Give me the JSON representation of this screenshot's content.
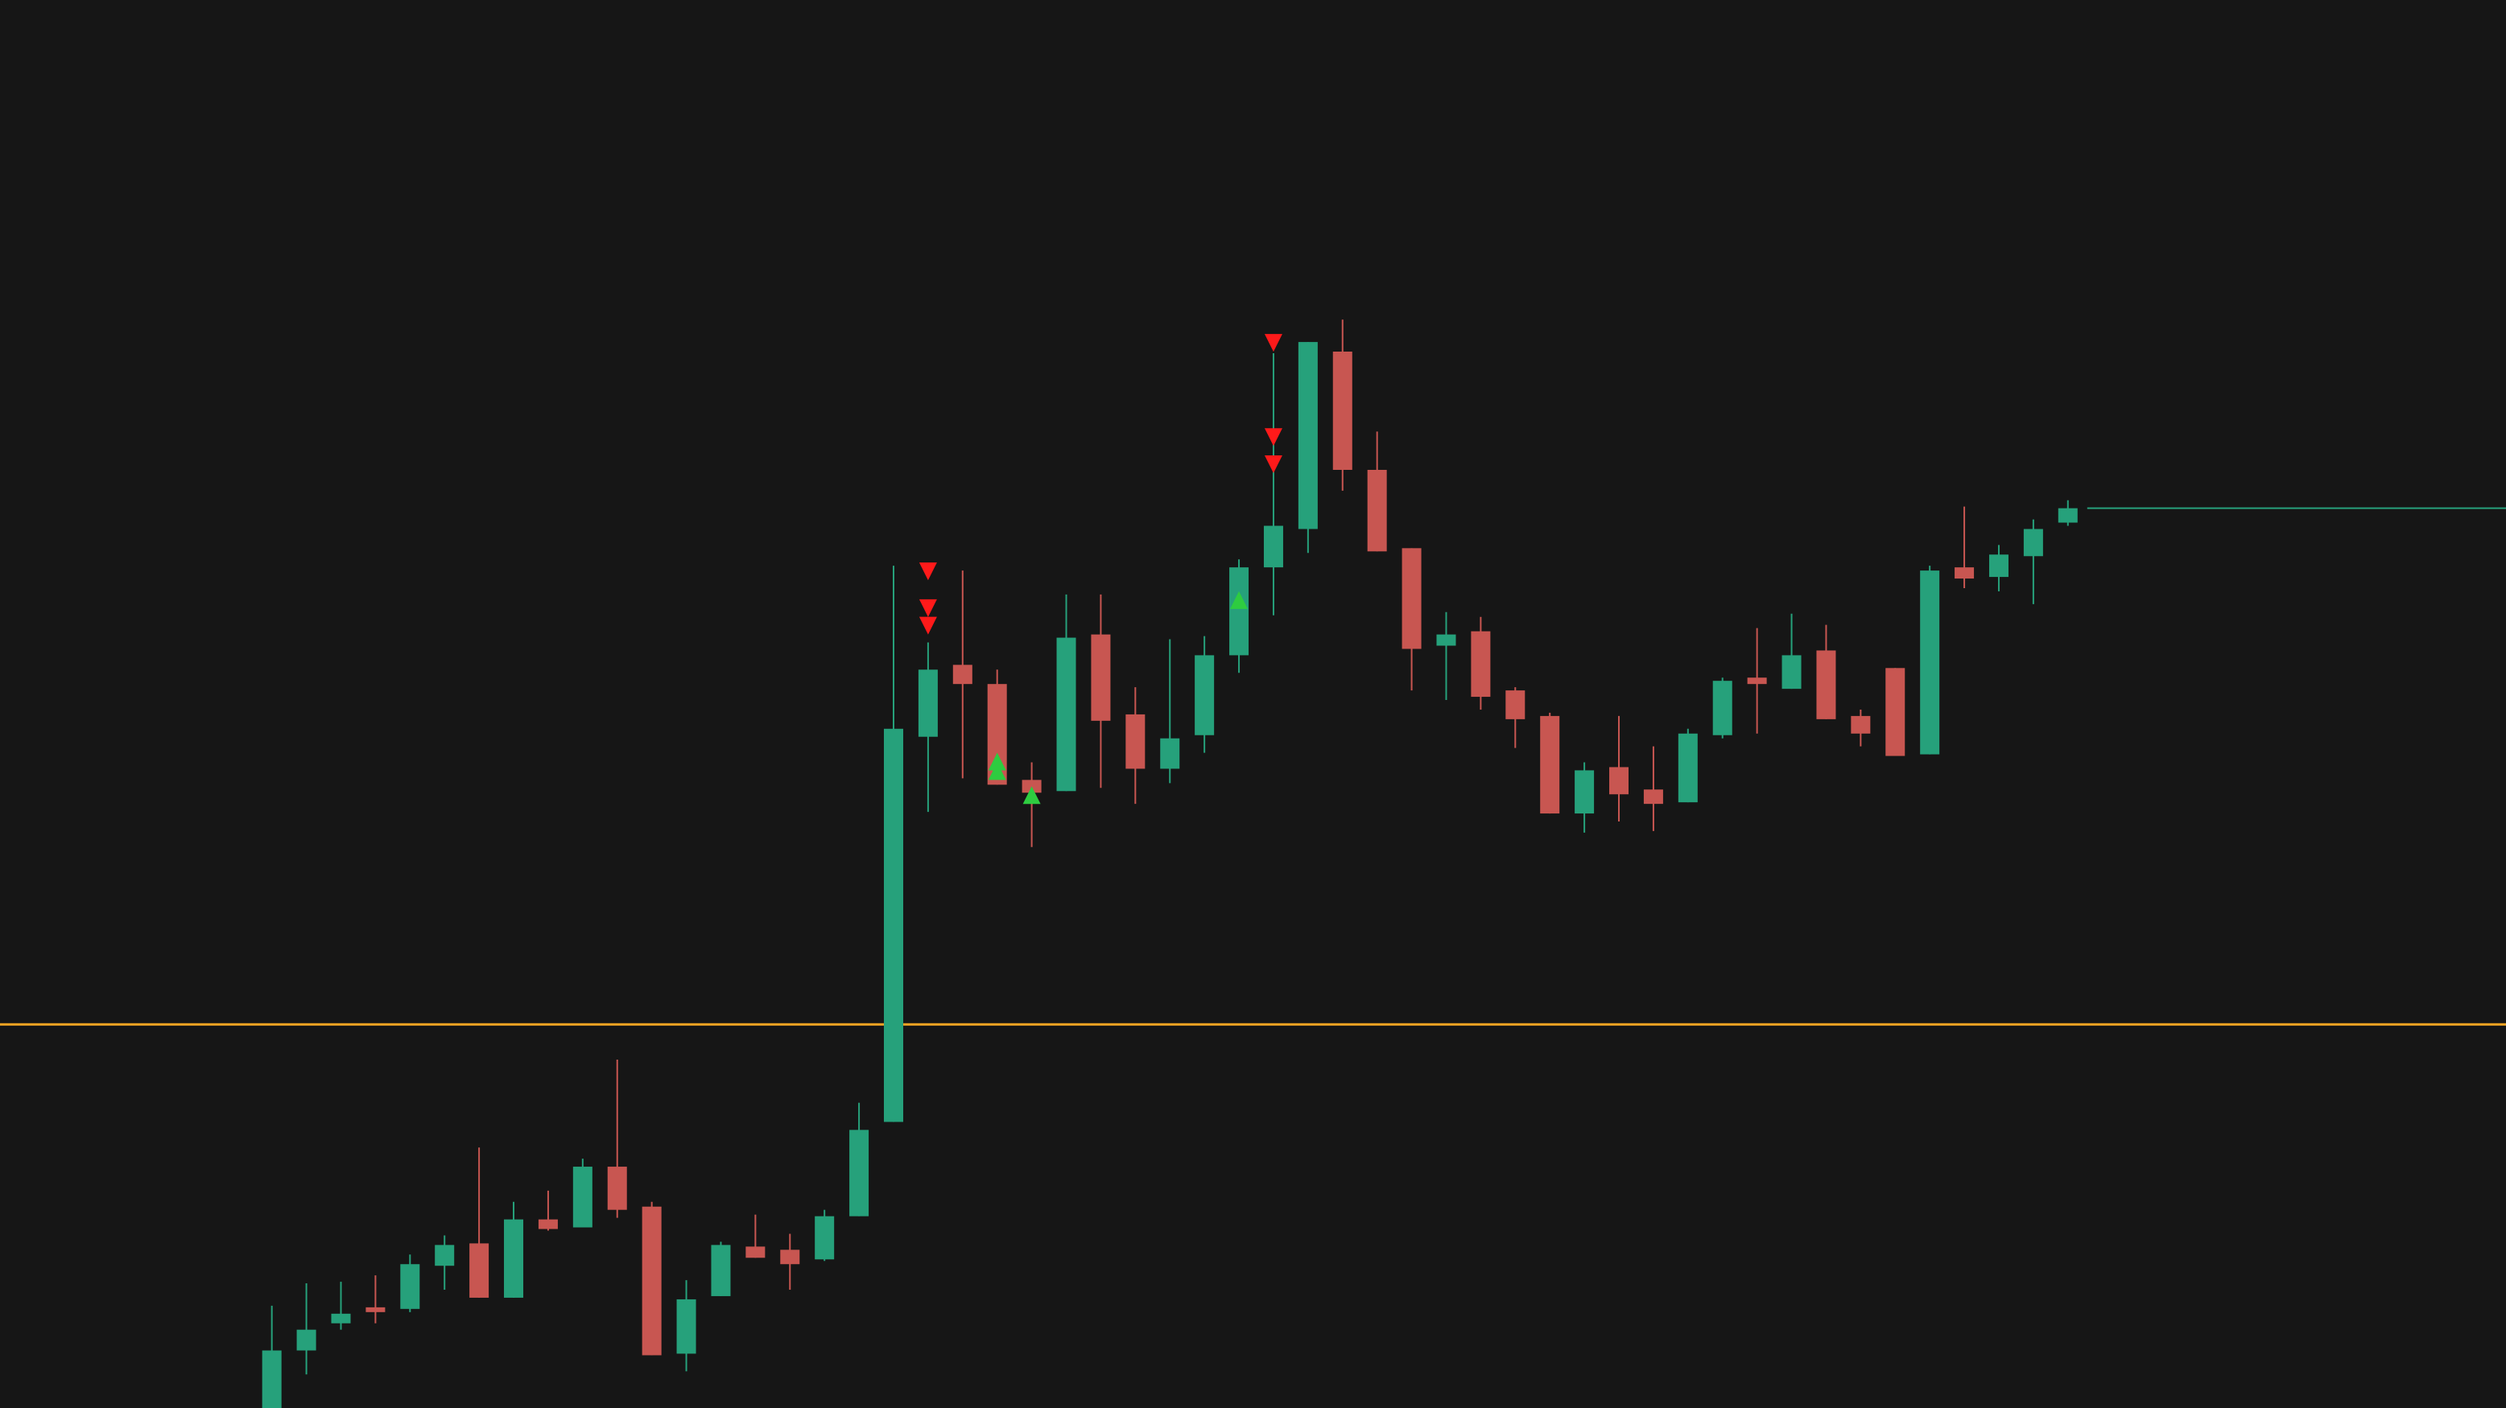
{
  "chart_data": {
    "type": "candlestick",
    "background": "#161616",
    "up_color": "#26a17b",
    "down_color": "#c85651",
    "ylim": [
      0,
      881
    ],
    "open": [
      0,
      36,
      53,
      63,
      62,
      89,
      103,
      69,
      118,
      113,
      151,
      126,
      34,
      70,
      101,
      99,
      93,
      120,
      179,
      420,
      465,
      453,
      393,
      386,
      484,
      434,
      400,
      421,
      471,
      526,
      550,
      661,
      587,
      538,
      477,
      486,
      449,
      433,
      372,
      401,
      387,
      379,
      421,
      457,
      450,
      474,
      433,
      463,
      409,
      526,
      520,
      533,
      554
    ],
    "high": [
      64,
      78,
      79,
      83,
      96,
      108,
      163,
      129,
      136,
      156,
      218,
      129,
      80,
      104,
      121,
      109,
      124,
      191,
      527,
      479,
      524,
      462,
      404,
      509,
      509,
      451,
      481,
      483,
      531,
      660,
      667,
      681,
      611,
      538,
      498,
      495,
      451,
      435,
      404,
      433,
      414,
      425,
      457,
      488,
      497,
      490,
      437,
      463,
      527,
      564,
      540,
      556,
      568
    ],
    "low": [
      0,
      21,
      49,
      53,
      60,
      74,
      69,
      69,
      111,
      113,
      119,
      33,
      23,
      70,
      94,
      74,
      92,
      120,
      179,
      373,
      394,
      390,
      351,
      386,
      388,
      378,
      391,
      410,
      460,
      496,
      535,
      574,
      536,
      449,
      443,
      437,
      413,
      372,
      360,
      367,
      361,
      379,
      419,
      422,
      450,
      431,
      414,
      408,
      409,
      513,
      511,
      503,
      552
    ],
    "close": [
      36,
      49,
      59,
      60,
      90,
      102,
      69,
      118,
      112,
      151,
      124,
      33,
      68,
      102,
      94,
      90,
      120,
      174,
      425,
      462,
      453,
      390,
      385,
      482,
      430,
      400,
      419,
      471,
      526,
      552,
      667,
      587,
      536,
      475,
      484,
      445,
      431,
      372,
      399,
      384,
      378,
      422,
      455,
      453,
      471,
      431,
      422,
      408,
      524,
      519,
      534,
      550,
      563
    ],
    "hlines": [
      {
        "value": 240,
        "color": "#f5a623"
      }
    ],
    "last_price_line": true,
    "markers": [
      {
        "index": 19,
        "value": 524,
        "shape": "down",
        "color": "#ff1a1a"
      },
      {
        "index": 19,
        "value": 501,
        "shape": "down",
        "color": "#ff1a1a"
      },
      {
        "index": 19,
        "value": 490,
        "shape": "down",
        "color": "#ff1a1a"
      },
      {
        "index": 29,
        "value": 667,
        "shape": "down",
        "color": "#ff1a1a"
      },
      {
        "index": 29,
        "value": 608,
        "shape": "down",
        "color": "#ff1a1a"
      },
      {
        "index": 29,
        "value": 591,
        "shape": "down",
        "color": "#ff1a1a"
      },
      {
        "index": 21,
        "value": 404,
        "shape": "up",
        "color": "#2ecc40"
      },
      {
        "index": 21,
        "value": 398,
        "shape": "up",
        "color": "#2ecc40"
      },
      {
        "index": 22,
        "value": 383,
        "shape": "up",
        "color": "#2ecc40"
      },
      {
        "index": 28,
        "value": 505,
        "shape": "up",
        "color": "#2ecc40"
      }
    ]
  }
}
